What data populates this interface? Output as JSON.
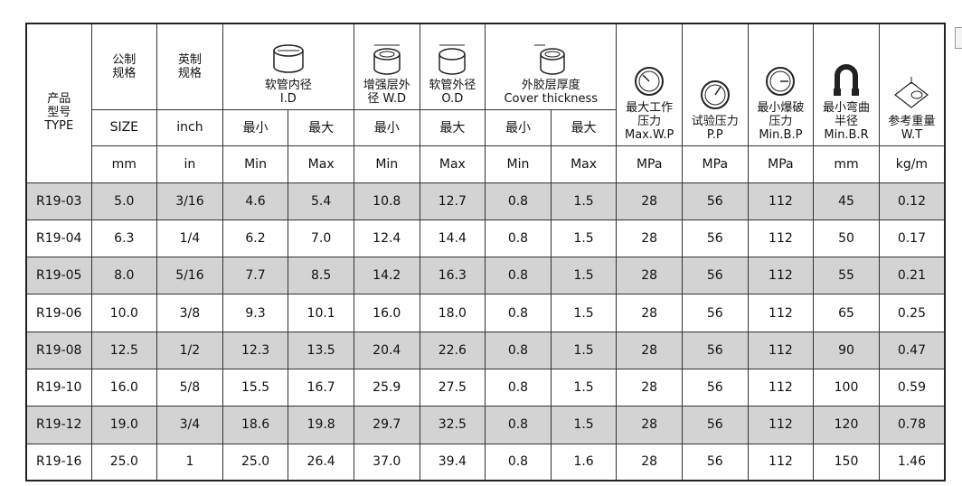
{
  "header": {
    "row1": [
      {
        "lines": [
          "产品",
          "型号",
          "TYPE"
        ]
      },
      {
        "lines": [
          "公制",
          "规格"
        ]
      },
      {
        "lines": [
          "英制",
          "规格"
        ]
      },
      {
        "lines": [
          "软管内径",
          "I.D"
        ]
      },
      {
        "lines": [
          "增强层外",
          "径 W.D"
        ]
      },
      {
        "lines": [
          "软管外径",
          "O.D"
        ]
      },
      {
        "lines": [
          "外胶层厚度",
          "Cover thickness"
        ]
      },
      {
        "lines": [
          "最大工作",
          "压力",
          "Max.W.P"
        ]
      },
      {
        "lines": [
          "试验压力",
          "P.P"
        ]
      },
      {
        "lines": [
          "最小爆破",
          "压力",
          "Min.B.P"
        ]
      },
      {
        "lines": [
          "最小弯曲",
          "半径",
          "Min.B.R"
        ]
      },
      {
        "lines": [
          "参考重量",
          "W.T"
        ]
      }
    ],
    "row2": [
      "SIZE",
      "inch",
      "最小",
      "最大",
      "最小",
      "最大",
      "最小",
      "最大"
    ],
    "row3": [
      "mm",
      "in",
      "Min",
      "Max",
      "Min",
      "Max",
      "Min",
      "Max",
      "MPa",
      "MPa",
      "MPa",
      "mm",
      "kg/m"
    ]
  },
  "table": {
    "rows": [
      [
        "R19-03",
        "5.0",
        "3/16",
        "4.6",
        "5.4",
        "10.8",
        "12.7",
        "0.8",
        "1.5",
        "28",
        "56",
        "112",
        "45",
        "0.12"
      ],
      [
        "R19-04",
        "6.3",
        "1/4",
        "6.2",
        "7.0",
        "12.4",
        "14.4",
        "0.8",
        "1.5",
        "28",
        "56",
        "112",
        "50",
        "0.17"
      ],
      [
        "R19-05",
        "8.0",
        "5/16",
        "7.7",
        "8.5",
        "14.2",
        "16.3",
        "0.8",
        "1.5",
        "28",
        "56",
        "112",
        "55",
        "0.21"
      ],
      [
        "R19-06",
        "10.0",
        "3/8",
        "9.3",
        "10.1",
        "16.0",
        "18.0",
        "0.8",
        "1.5",
        "28",
        "56",
        "112",
        "65",
        "0.25"
      ],
      [
        "R19-08",
        "12.5",
        "1/2",
        "12.3",
        "13.5",
        "20.4",
        "22.6",
        "0.8",
        "1.5",
        "28",
        "56",
        "112",
        "90",
        "0.47"
      ],
      [
        "R19-10",
        "16.0",
        "5/8",
        "15.5",
        "16.7",
        "25.9",
        "27.5",
        "0.8",
        "1.5",
        "28",
        "56",
        "112",
        "100",
        "0.59"
      ],
      [
        "R19-12",
        "19.0",
        "3/4",
        "18.6",
        "19.8",
        "29.7",
        "32.5",
        "0.8",
        "1.5",
        "28",
        "56",
        "112",
        "120",
        "0.78"
      ],
      [
        "R19-16",
        "25.0",
        "1",
        "25.0",
        "26.4",
        "37.0",
        "39.4",
        "0.8",
        "1.6",
        "28",
        "56",
        "112",
        "150",
        "1.46"
      ]
    ]
  }
}
